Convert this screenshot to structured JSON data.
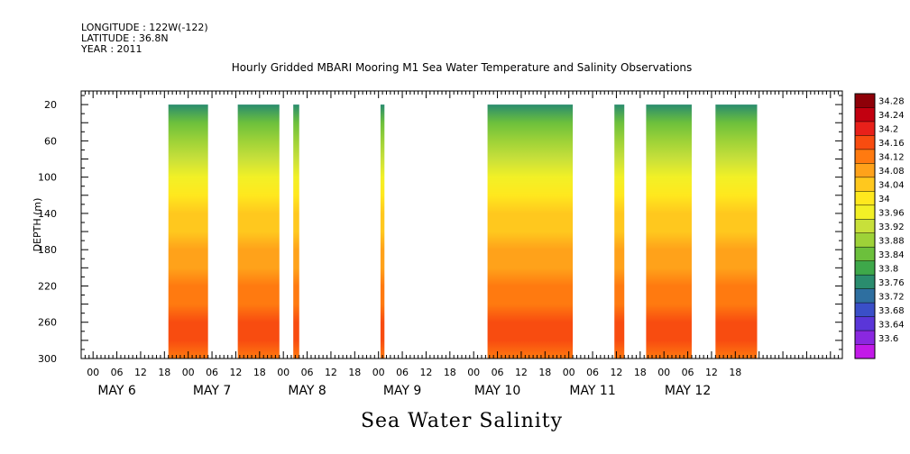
{
  "header": {
    "longitude": "LONGITUDE : 122W(-122)",
    "latitude": "LATITUDE : 36.8N",
    "year": "YEAR : 2011"
  },
  "title": "Hourly Gridded MBARI Mooring M1 Sea Water Temperature and Salinity Observations",
  "footer": "Sea Water Salinity",
  "chart_data": {
    "type": "heatmap",
    "ylabel": "DEPTH (m)",
    "yticks": [
      20,
      60,
      100,
      140,
      180,
      220,
      260,
      300
    ],
    "ylim": [
      300,
      5
    ],
    "hour_ticks": [
      "00",
      "06",
      "12",
      "18",
      "00",
      "06",
      "12",
      "18",
      "00",
      "06",
      "12",
      "18",
      "00",
      "06",
      "12",
      "18",
      "00",
      "06",
      "12",
      "18",
      "00",
      "06",
      "12",
      "18",
      "00",
      "06",
      "12",
      "18"
    ],
    "day_labels": [
      "MAY  6",
      "MAY  7",
      "MAY  8",
      "MAY  9",
      "MAY 10",
      "MAY 11",
      "MAY 12"
    ],
    "x_range_hours": [
      -3,
      189
    ],
    "colorbar": {
      "levels": [
        "34.28",
        "34.24",
        "34.2",
        "34.16",
        "34.12",
        "34.08",
        "34.04",
        "34",
        "33.96",
        "33.92",
        "33.88",
        "33.84",
        "33.8",
        "33.76",
        "33.72",
        "33.68",
        "33.64",
        "33.6"
      ],
      "colors": [
        "#8e0008",
        "#c20010",
        "#e8201a",
        "#f84c10",
        "#ff7a10",
        "#ffa21a",
        "#ffc81e",
        "#ffe81e",
        "#f2f026",
        "#c8e03a",
        "#9ed238",
        "#6cc03c",
        "#3ea84a",
        "#2a8c6e",
        "#2e6fa0",
        "#3a4fc8",
        "#5a36d8",
        "#8a28e0",
        "#c21ae8"
      ]
    },
    "data_blocks": [
      {
        "start_hour": 19,
        "end_hour": 29,
        "top_depth": 20,
        "bottom_depth": 300
      },
      {
        "start_hour": 36.5,
        "end_hour": 47,
        "top_depth": 20,
        "bottom_depth": 300
      },
      {
        "start_hour": 50.5,
        "end_hour": 52,
        "top_depth": 20,
        "bottom_depth": 300
      },
      {
        "start_hour": 72.5,
        "end_hour": 73.5,
        "top_depth": 20,
        "bottom_depth": 300
      },
      {
        "start_hour": 99.5,
        "end_hour": 121,
        "top_depth": 20,
        "bottom_depth": 300
      },
      {
        "start_hour": 131.5,
        "end_hour": 134,
        "top_depth": 20,
        "bottom_depth": 300
      },
      {
        "start_hour": 139.5,
        "end_hour": 151,
        "top_depth": 20,
        "bottom_depth": 300
      },
      {
        "start_hour": 157,
        "end_hour": 167.5,
        "top_depth": 20,
        "bottom_depth": 300
      }
    ],
    "salinity_profile": [
      {
        "depth": 20,
        "value": 33.82
      },
      {
        "depth": 40,
        "value": 33.88
      },
      {
        "depth": 60,
        "value": 33.95
      },
      {
        "depth": 80,
        "value": 33.99
      },
      {
        "depth": 100,
        "value": 34.02
      },
      {
        "depth": 120,
        "value": 34.06
      },
      {
        "depth": 140,
        "value": 34.09
      },
      {
        "depth": 160,
        "value": 34.11
      },
      {
        "depth": 180,
        "value": 34.12
      },
      {
        "depth": 200,
        "value": 34.13
      },
      {
        "depth": 220,
        "value": 34.16
      },
      {
        "depth": 240,
        "value": 34.19
      },
      {
        "depth": 260,
        "value": 34.22
      },
      {
        "depth": 280,
        "value": 34.2
      },
      {
        "depth": 300,
        "value": 34.19
      }
    ]
  }
}
